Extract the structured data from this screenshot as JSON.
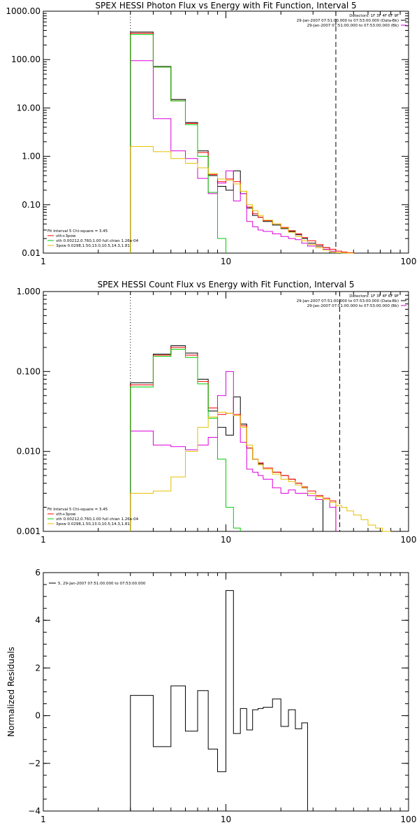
{
  "chart_data": [
    {
      "type": "line",
      "title": "SPEX HESSI Photon Flux vs Energy with Fit Function, Interval 5",
      "xlabel": "",
      "ylabel": "",
      "xscale": "log",
      "yscale": "log",
      "xlim": [
        1,
        100
      ],
      "ylim": [
        0.01,
        1000
      ],
      "xticks": [
        {
          "v": 1,
          "label": "1"
        },
        {
          "v": 10,
          "label": "10"
        },
        {
          "v": 100,
          "label": "100"
        }
      ],
      "yticks": [
        {
          "v": 0.01,
          "label": "0.01"
        },
        {
          "v": 0.1,
          "label": "0.10"
        },
        {
          "v": 1,
          "label": "1.00"
        },
        {
          "v": 10,
          "label": "10.00"
        },
        {
          "v": 100,
          "label": "100.00"
        },
        {
          "v": 1000,
          "label": "1000.00"
        }
      ],
      "edges": [
        3,
        4,
        5,
        6,
        7,
        8,
        9,
        10,
        11,
        12,
        13,
        14,
        15,
        16,
        18,
        20,
        22,
        24,
        26,
        28,
        31,
        34,
        37,
        40,
        43,
        46,
        50
      ],
      "vlines": [
        {
          "x": 3,
          "style": "dotted"
        },
        {
          "x": 40,
          "style": "dashed"
        }
      ],
      "legend_top": [
        "Detectors: 1F 3F 4F 6F 9F",
        "29-Jan-2007 07:51:00.000 to 07:53:00.000 (Data-Bk)",
        "29-Jan-2007 07:51:00.000 to 07:53:00.000 (Bk)"
      ],
      "legend_bottom": [
        "Fit Interval 5   Chi-square = 3.45",
        "vth+3pow",
        "vth 0.00212,0.760,1.00   full chian 1.26e-04",
        "3pow 0.0298,1.50,13.0,10.5,14.3,1.81"
      ],
      "series": [
        {
          "color": "#000000",
          "values": [
            370,
            72,
            15,
            5,
            1.3,
            0.4,
            0.24,
            0.2,
            0.5,
            0.17,
            0.085,
            0.06,
            0.055,
            0.045,
            0.038,
            0.032,
            0.028,
            0.024,
            0.02,
            0.016,
            0.014,
            0.013,
            null,
            null,
            null,
            null
          ]
        },
        {
          "color": "#ff0000",
          "values": [
            350,
            70,
            14,
            4.8,
            1.2,
            0.42,
            0.3,
            0.34,
            0.3,
            0.19,
            0.09,
            0.065,
            0.055,
            0.047,
            0.04,
            0.034,
            0.029,
            0.025,
            0.021,
            0.018,
            0.015,
            0.013,
            0.012,
            0.011,
            0.0105,
            0.0102
          ]
        },
        {
          "color": "#dd00dd",
          "values": [
            95,
            6,
            1.3,
            0.9,
            0.35,
            0.17,
            0.28,
            0.5,
            0.12,
            0.17,
            0.045,
            0.035,
            0.03,
            0.028,
            0.025,
            0.022,
            0.02,
            0.019,
            0.016,
            0.014,
            0.013,
            0.012,
            0.011,
            null,
            null,
            null
          ]
        },
        {
          "color": "#00cc00",
          "values": [
            330,
            70,
            14,
            4.5,
            1.0,
            0.18,
            0.02,
            null,
            null,
            null,
            null,
            null,
            null,
            null,
            null,
            null,
            null,
            null,
            null,
            null,
            null,
            null,
            null,
            null,
            null,
            null
          ]
        },
        {
          "color": "#e6c000",
          "values": [
            1.6,
            1.25,
            0.9,
            0.72,
            0.58,
            0.44,
            0.34,
            0.32,
            0.27,
            0.19,
            0.1,
            0.075,
            0.06,
            0.048,
            0.04,
            0.033,
            0.027,
            0.022,
            0.018,
            0.015,
            0.013,
            0.0115,
            0.0105,
            0.0102,
            0.0101,
            0.01
          ]
        }
      ]
    },
    {
      "type": "line",
      "title": "SPEX HESSI Count Flux vs Energy with Fit Function, Interval 5",
      "xlabel": "",
      "ylabel": "",
      "xscale": "log",
      "yscale": "log",
      "xlim": [
        1,
        100
      ],
      "ylim": [
        0.001,
        1
      ],
      "xticks": [
        {
          "v": 1,
          "label": "1"
        },
        {
          "v": 10,
          "label": "10"
        },
        {
          "v": 100,
          "label": "100"
        }
      ],
      "yticks": [
        {
          "v": 0.001,
          "label": "0.001"
        },
        {
          "v": 0.01,
          "label": "0.010"
        },
        {
          "v": 0.1,
          "label": "0.100"
        },
        {
          "v": 1,
          "label": "1.000"
        }
      ],
      "edges": [
        3,
        4,
        5,
        6,
        7,
        8,
        9,
        10,
        11,
        12,
        13,
        14,
        15,
        16,
        18,
        20,
        22,
        24,
        26,
        28,
        31,
        34,
        37,
        40,
        43,
        46,
        50,
        55,
        60,
        66,
        72,
        80
      ],
      "vlines": [
        {
          "x": 3,
          "style": "dotted"
        },
        {
          "x": 42,
          "style": "dashed"
        }
      ],
      "legend_top": [
        "Detectors: 1F 3F 4F 6F 9F",
        "29-Jan-2007 07:51:00.000 to 07:53:00.000 (Data-Bk)",
        "29-Jan-2007 07:51:00.000 to 07:53:00.000 (Bk)"
      ],
      "legend_bottom": [
        "Fit Interval 5   Chi-square = 3.45",
        "vth+3pow",
        "vth 0.00212,0.760,1.00   full chian 1.26e-04",
        "3pow 0.0298,1.50,13.0,10.5,14.3,1.81"
      ],
      "series": [
        {
          "color": "#000000",
          "values": [
            0.072,
            0.165,
            0.21,
            0.17,
            0.08,
            0.032,
            0.02,
            0.016,
            0.048,
            0.022,
            0.011,
            0.008,
            0.007,
            0.006,
            0.0055,
            0.005,
            0.0045,
            0.004,
            0.0035,
            0.003,
            0.0028,
            null,
            null,
            null,
            null,
            null,
            null,
            null,
            null,
            null,
            null
          ]
        },
        {
          "color": "#ff0000",
          "values": [
            0.068,
            0.16,
            0.2,
            0.16,
            0.075,
            0.035,
            0.029,
            0.03,
            0.029,
            0.021,
            0.011,
            0.008,
            0.0072,
            0.0062,
            0.0055,
            0.005,
            0.0045,
            0.004,
            0.0036,
            0.0032,
            0.0028,
            0.0026,
            0.0024,
            null,
            null,
            null,
            null,
            null,
            null,
            null,
            null
          ]
        },
        {
          "color": "#dd00dd",
          "values": [
            0.018,
            0.012,
            0.0115,
            0.0105,
            0.012,
            0.015,
            0.05,
            0.1,
            0.028,
            0.013,
            0.006,
            0.0055,
            0.005,
            0.0045,
            0.0035,
            0.003,
            0.0033,
            0.003,
            0.003,
            0.0028,
            0.0025,
            0.0025,
            0.002,
            null,
            null,
            null,
            null,
            null,
            null,
            null,
            null
          ]
        },
        {
          "color": "#00cc00",
          "values": [
            0.064,
            0.155,
            0.19,
            0.15,
            0.07,
            0.026,
            0.008,
            0.002,
            0.0011,
            null,
            null,
            null,
            null,
            null,
            null,
            null,
            null,
            null,
            null,
            null,
            null,
            null,
            null,
            null,
            null,
            null,
            null,
            null,
            null,
            null,
            null
          ]
        },
        {
          "color": "#e6c000",
          "values": [
            0.003,
            0.0032,
            0.0048,
            0.01,
            0.02,
            0.027,
            0.031,
            0.03,
            0.028,
            0.02,
            0.012,
            0.008,
            0.0068,
            0.006,
            0.0052,
            0.0045,
            0.0042,
            0.0038,
            0.0035,
            0.003,
            0.0027,
            0.0025,
            0.0023,
            0.0021,
            0.002,
            0.0018,
            0.0016,
            0.0014,
            0.0012,
            0.0011,
            0.001
          ]
        }
      ]
    },
    {
      "type": "line",
      "title": "",
      "xlabel": "",
      "ylabel": "Normalized Residuals",
      "xscale": "log",
      "yscale": "linear",
      "xlim": [
        1,
        100
      ],
      "ylim": [
        -4,
        6
      ],
      "xticks": [
        {
          "v": 1,
          "label": "1"
        },
        {
          "v": 10,
          "label": "10"
        },
        {
          "v": 100,
          "label": "100"
        }
      ],
      "yticks": [
        {
          "v": -4,
          "label": "−4"
        },
        {
          "v": -2,
          "label": "−2"
        },
        {
          "v": 0,
          "label": "0"
        },
        {
          "v": 2,
          "label": "2"
        },
        {
          "v": 4,
          "label": "4"
        },
        {
          "v": 6,
          "label": "6"
        }
      ],
      "edges": [
        3,
        4,
        5,
        6,
        7,
        8,
        9,
        10,
        11,
        12,
        13,
        14,
        15,
        16,
        18,
        20,
        22,
        24,
        26,
        28,
        31,
        34,
        37,
        40
      ],
      "vlines": [],
      "legend_top": [],
      "legend_bottom": [],
      "legend_corner": "5, 29-Jan-2007 07:51:00.000 to 07:53:00.000",
      "series": [
        {
          "color": "#000000",
          "values": [
            0.85,
            -1.3,
            1.25,
            -0.65,
            1.05,
            -1.4,
            -2.35,
            5.25,
            -0.75,
            0.3,
            -0.6,
            0.25,
            0.3,
            0.35,
            0.7,
            -0.45,
            0.25,
            -0.55,
            -0.3
          ]
        }
      ]
    }
  ]
}
